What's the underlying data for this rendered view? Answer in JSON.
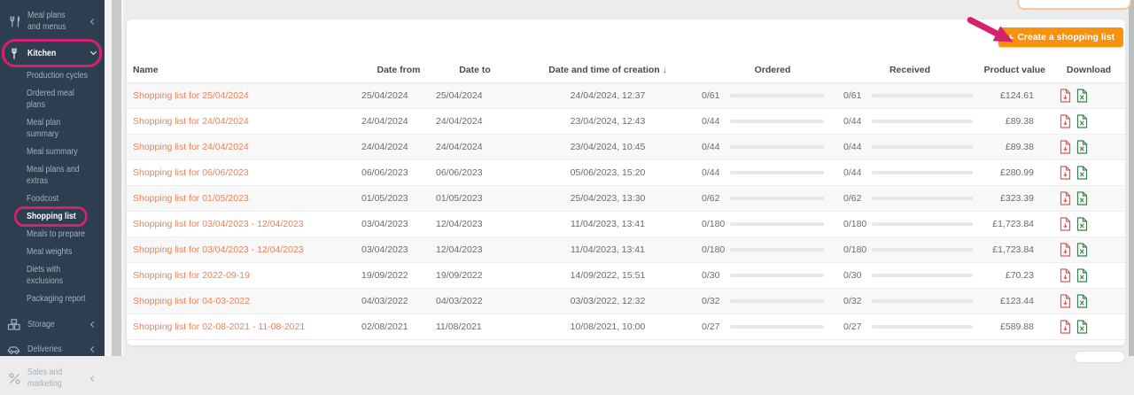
{
  "colors": {
    "sidebar_navy": "#2d3e50",
    "annotation_pink": "#d6216e",
    "accent_orange": "#f7920e",
    "link_salmon": "#f08055",
    "pdf_red": "#dd5b56",
    "excel_green": "#3f7d50"
  },
  "sidebar": {
    "items": [
      {
        "label": "Meal plans and menus",
        "level": "top",
        "icon": "utensils-icon",
        "chevron": "collapsed",
        "active": false,
        "annotated": false
      },
      {
        "label": "Kitchen",
        "level": "top",
        "icon": "fork-icon",
        "chevron": "expanded",
        "active": true,
        "annotated": true
      },
      {
        "label": "Production cycles",
        "level": "sub",
        "active": false,
        "annotated": false
      },
      {
        "label": "Ordered meal plans",
        "level": "sub",
        "active": false,
        "annotated": false
      },
      {
        "label": "Meal plan summary",
        "level": "sub",
        "active": false,
        "annotated": false
      },
      {
        "label": "Meal summary",
        "level": "sub",
        "active": false,
        "annotated": false
      },
      {
        "label": "Meal plans and extras",
        "level": "sub",
        "active": false,
        "annotated": false
      },
      {
        "label": "Foodcost",
        "level": "sub",
        "active": false,
        "annotated": false
      },
      {
        "label": "Shopping list",
        "level": "sub",
        "active": true,
        "annotated": true
      },
      {
        "label": "Meals to prepare",
        "level": "sub",
        "active": false,
        "annotated": false
      },
      {
        "label": "Meal weights",
        "level": "sub",
        "active": false,
        "annotated": false
      },
      {
        "label": "Diets with exclusions",
        "level": "sub",
        "active": false,
        "annotated": false
      },
      {
        "label": "Packaging report",
        "level": "sub",
        "active": false,
        "annotated": false
      },
      {
        "label": "Storage",
        "level": "top",
        "icon": "boxes-icon",
        "chevron": "collapsed",
        "active": false,
        "annotated": false
      },
      {
        "label": "Deliveries",
        "level": "top",
        "icon": "truck-icon",
        "chevron": "collapsed",
        "active": false,
        "annotated": false
      },
      {
        "label": "Sales and marketing",
        "level": "top",
        "icon": "percent-icon",
        "chevron": "collapsed",
        "active": false,
        "annotated": false
      }
    ]
  },
  "toolbar": {
    "create_button_icon": "+",
    "create_button_label": "Create a shopping list"
  },
  "table": {
    "headers": {
      "name": "Name",
      "date_from": "Date from",
      "date_to": "Date to",
      "created": "Date and time of creation",
      "ordered": "Ordered",
      "received": "Received",
      "product_value": "Product value",
      "download": "Download"
    },
    "sort_icon": "↓",
    "rows": [
      {
        "name": "Shopping list for 25/04/2024",
        "date_from": "25/04/2024",
        "date_to": "25/04/2024",
        "created": "24/04/2024, 12:37",
        "ordered": "0/61",
        "received": "0/61",
        "product_value": "£124.61",
        "downloads": [
          "pdf",
          "xls"
        ]
      },
      {
        "name": "Shopping list for 24/04/2024",
        "date_from": "24/04/2024",
        "date_to": "24/04/2024",
        "created": "23/04/2024, 12:43",
        "ordered": "0/44",
        "received": "0/44",
        "product_value": "£89.38",
        "downloads": [
          "pdf",
          "xls"
        ]
      },
      {
        "name": "Shopping list for 24/04/2024",
        "date_from": "24/04/2024",
        "date_to": "24/04/2024",
        "created": "23/04/2024, 10:45",
        "ordered": "0/44",
        "received": "0/44",
        "product_value": "£89.38",
        "downloads": [
          "pdf",
          "xls"
        ]
      },
      {
        "name": "Shopping list for 06/06/2023",
        "date_from": "06/06/2023",
        "date_to": "06/06/2023",
        "created": "05/06/2023, 15:20",
        "ordered": "0/44",
        "received": "0/44",
        "product_value": "£280.99",
        "downloads": [
          "pdf",
          "xls"
        ]
      },
      {
        "name": "Shopping list for 01/05/2023",
        "date_from": "01/05/2023",
        "date_to": "01/05/2023",
        "created": "25/04/2023, 13:30",
        "ordered": "0/62",
        "received": "0/62",
        "product_value": "£323.39",
        "downloads": [
          "pdf",
          "xls"
        ]
      },
      {
        "name": "Shopping list for 03/04/2023 - 12/04/2023",
        "date_from": "03/04/2023",
        "date_to": "12/04/2023",
        "created": "11/04/2023, 13:41",
        "ordered": "0/180",
        "received": "0/180",
        "product_value": "£1,723.84",
        "downloads": [
          "pdf",
          "xls"
        ]
      },
      {
        "name": "Shopping list for 03/04/2023 - 12/04/2023",
        "date_from": "03/04/2023",
        "date_to": "12/04/2023",
        "created": "11/04/2023, 13:41",
        "ordered": "0/180",
        "received": "0/180",
        "product_value": "£1,723.84",
        "downloads": [
          "pdf",
          "xls"
        ]
      },
      {
        "name": "Shopping list for 2022-09-19",
        "date_from": "19/09/2022",
        "date_to": "19/09/2022",
        "created": "14/09/2022, 15:51",
        "ordered": "0/30",
        "received": "0/30",
        "product_value": "£70.23",
        "downloads": [
          "pdf",
          "xls"
        ]
      },
      {
        "name": "Shopping list for 04-03-2022",
        "date_from": "04/03/2022",
        "date_to": "04/03/2022",
        "created": "03/03/2022, 12:32",
        "ordered": "0/32",
        "received": "0/32",
        "product_value": "£123.44",
        "downloads": [
          "pdf",
          "xls"
        ]
      },
      {
        "name": "Shopping list for 02-08-2021 - 11-08-2021",
        "date_from": "02/08/2021",
        "date_to": "11/08/2021",
        "created": "10/08/2021, 10:00",
        "ordered": "0/27",
        "received": "0/27",
        "product_value": "£589.88",
        "downloads": [
          "pdf",
          "xls"
        ]
      }
    ]
  }
}
